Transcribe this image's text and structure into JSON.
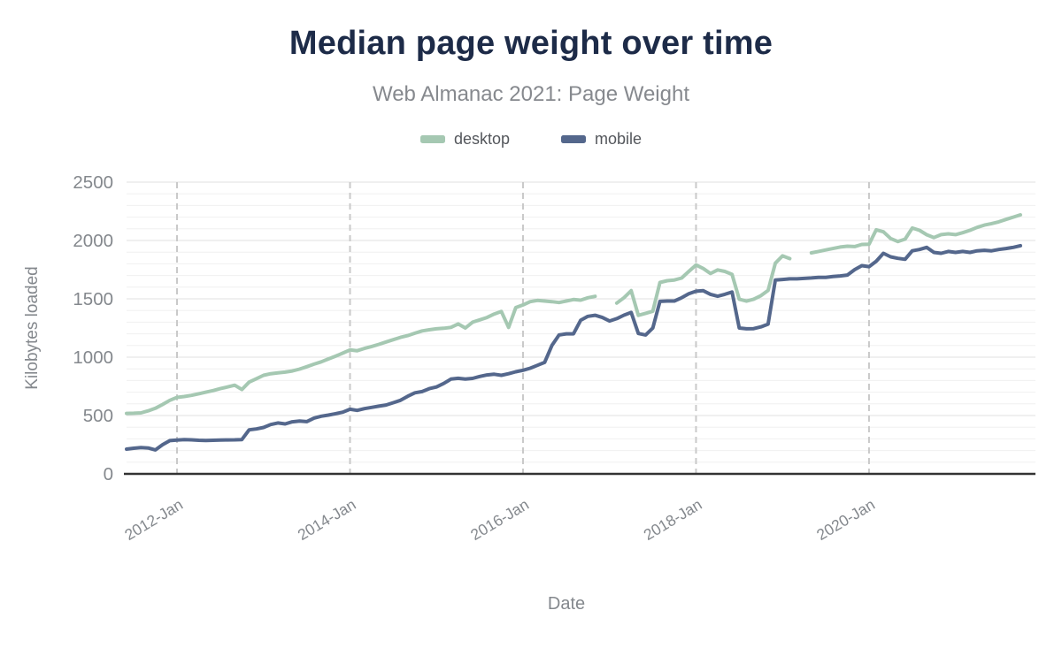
{
  "chart": {
    "title": "Median page weight over time",
    "subtitle": "Web Almanac 2021: Page Weight",
    "x_axis_title": "Date",
    "y_axis_title": "Kilobytes loaded"
  },
  "legend": {
    "items": [
      {
        "label": "desktop",
        "color": "#a5c8b2"
      },
      {
        "label": "mobile",
        "color": "#54678c"
      }
    ]
  },
  "colors": {
    "title": "#1d2b48",
    "subtitle": "#86898e",
    "tick_label": "#84888d",
    "axis_line": "#333333",
    "dashed_gridline": "#c9c9c9",
    "minor_gridline": "#f0f0f0",
    "major_gridline": "#e1e1e1",
    "background": "#ffffff"
  },
  "chart_data": {
    "type": "line",
    "title": "Median page weight over time",
    "subtitle": "Web Almanac 2021: Page Weight",
    "xlabel": "Date",
    "ylabel": "Kilobytes loaded",
    "ylim": [
      0,
      2500
    ],
    "y_ticks": [
      0,
      500,
      1000,
      1500,
      2000,
      2500
    ],
    "y_minor_step": 100,
    "grid": "horizontal-minor+major, dashed vertical at ticks",
    "legend_position": "top-center",
    "x_tick_labels": [
      {
        "month": "2012-01",
        "label": "2012-Jan"
      },
      {
        "month": "2014-01",
        "label": "2014-Jan"
      },
      {
        "month": "2016-01",
        "label": "2016-Jan"
      },
      {
        "month": "2018-01",
        "label": "2018-Jan"
      },
      {
        "month": "2020-01",
        "label": "2020-Jan"
      }
    ],
    "x": [
      "2011-06",
      "2011-07",
      "2011-08",
      "2011-09",
      "2011-10",
      "2011-11",
      "2011-12",
      "2012-01",
      "2012-02",
      "2012-03",
      "2012-04",
      "2012-05",
      "2012-06",
      "2012-07",
      "2012-08",
      "2012-09",
      "2012-10",
      "2012-11",
      "2012-12",
      "2013-01",
      "2013-02",
      "2013-03",
      "2013-04",
      "2013-05",
      "2013-06",
      "2013-07",
      "2013-08",
      "2013-09",
      "2013-10",
      "2013-11",
      "2013-12",
      "2014-01",
      "2014-02",
      "2014-03",
      "2014-04",
      "2014-05",
      "2014-06",
      "2014-07",
      "2014-08",
      "2014-09",
      "2014-10",
      "2014-11",
      "2014-12",
      "2015-01",
      "2015-02",
      "2015-03",
      "2015-04",
      "2015-05",
      "2015-06",
      "2015-07",
      "2015-08",
      "2015-09",
      "2015-10",
      "2015-11",
      "2015-12",
      "2016-01",
      "2016-02",
      "2016-03",
      "2016-04",
      "2016-05",
      "2016-06",
      "2016-07",
      "2016-08",
      "2016-09",
      "2016-10",
      "2016-11",
      "2016-12",
      "2017-01",
      "2017-02",
      "2017-03",
      "2017-04",
      "2017-05",
      "2017-06",
      "2017-07",
      "2017-08",
      "2017-09",
      "2017-10",
      "2017-11",
      "2017-12",
      "2018-01",
      "2018-02",
      "2018-03",
      "2018-04",
      "2018-05",
      "2018-06",
      "2018-07",
      "2018-08",
      "2018-09",
      "2018-10",
      "2018-11",
      "2018-12",
      "2019-01",
      "2019-02",
      "2019-03",
      "2019-04",
      "2019-05",
      "2019-06",
      "2019-07",
      "2019-08",
      "2019-09",
      "2019-10",
      "2019-11",
      "2019-12",
      "2020-01",
      "2020-02",
      "2020-03",
      "2020-04",
      "2020-05",
      "2020-06",
      "2020-07",
      "2020-08",
      "2020-09",
      "2020-10",
      "2020-11",
      "2020-12",
      "2021-01",
      "2021-02",
      "2021-03",
      "2021-04",
      "2021-05",
      "2021-06",
      "2021-07",
      "2021-08",
      "2021-09",
      "2021-10"
    ],
    "series": [
      {
        "name": "desktop",
        "color": "#a5c8b2",
        "values": [
          518,
          520,
          523,
          540,
          562,
          595,
          630,
          655,
          663,
          673,
          686,
          700,
          714,
          730,
          745,
          760,
          723,
          786,
          815,
          845,
          858,
          865,
          872,
          882,
          898,
          918,
          940,
          960,
          985,
          1008,
          1035,
          1062,
          1055,
          1075,
          1092,
          1110,
          1130,
          1150,
          1170,
          1185,
          1205,
          1225,
          1235,
          1243,
          1248,
          1255,
          1285,
          1250,
          1300,
          1320,
          1340,
          1370,
          1392,
          1255,
          1425,
          1448,
          1476,
          1486,
          1481,
          1476,
          1468,
          1481,
          1494,
          1489,
          1509,
          1521,
          null,
          null,
          1464,
          1509,
          1570,
          1358,
          1376,
          1393,
          1640,
          1655,
          1661,
          1678,
          1735,
          1790,
          1760,
          1717,
          1748,
          1735,
          1709,
          1497,
          1480,
          1497,
          1527,
          1572,
          1805,
          1868,
          1845,
          null,
          null,
          1894,
          1906,
          1919,
          1931,
          1944,
          1951,
          1948,
          1966,
          1968,
          2092,
          2074,
          2017,
          1991,
          2011,
          2107,
          2087,
          2049,
          2025,
          2050,
          2057,
          2050,
          2067,
          2087,
          2112,
          2132,
          2145,
          2160,
          2180,
          2200,
          2220
        ]
      },
      {
        "name": "mobile",
        "color": "#54678c",
        "values": [
          212,
          220,
          225,
          222,
          205,
          250,
          285,
          290,
          293,
          292,
          288,
          286,
          288,
          290,
          291,
          292,
          294,
          377,
          385,
          398,
          423,
          436,
          428,
          446,
          453,
          448,
          478,
          494,
          504,
          516,
          529,
          554,
          544,
          559,
          570,
          580,
          590,
          610,
          630,
          665,
          695,
          705,
          730,
          745,
          775,
          812,
          819,
          812,
          818,
          835,
          848,
          854,
          845,
          858,
          875,
          888,
          905,
          930,
          955,
          1100,
          1190,
          1200,
          1200,
          1316,
          1350,
          1359,
          1340,
          1310,
          1330,
          1360,
          1383,
          1203,
          1190,
          1249,
          1478,
          1481,
          1481,
          1509,
          1543,
          1565,
          1570,
          1539,
          1522,
          1539,
          1558,
          1250,
          1243,
          1245,
          1260,
          1283,
          1661,
          1666,
          1671,
          1671,
          1675,
          1679,
          1684,
          1684,
          1691,
          1696,
          1704,
          1750,
          1784,
          1776,
          1822,
          1890,
          1860,
          1847,
          1839,
          1911,
          1923,
          1941,
          1898,
          1890,
          1906,
          1898,
          1906,
          1898,
          1911,
          1916,
          1911,
          1923,
          1931,
          1941,
          1955
        ]
      }
    ]
  }
}
